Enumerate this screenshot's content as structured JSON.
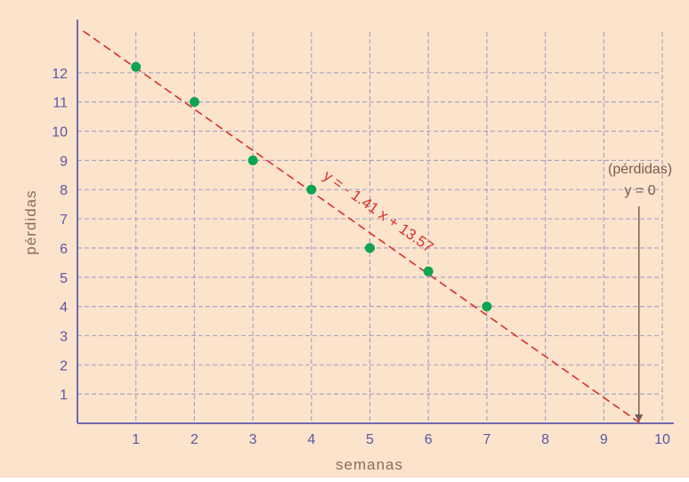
{
  "colors": {
    "background": "#FCE4CC",
    "axis": "#6E6AB0",
    "grid": "#A9A4C4",
    "tick_text": "#5B57A6",
    "axis_label": "#8A6A60",
    "points": "#0FA354",
    "fit_line": "#D9302B",
    "annotation": "#7A5A52"
  },
  "chart_data": {
    "type": "scatter",
    "title": "",
    "xlabel": "semanas",
    "ylabel": "pérdidas",
    "xlim": [
      0,
      10
    ],
    "ylim": [
      0,
      13
    ],
    "x_ticks": [
      "1",
      "2",
      "3",
      "4",
      "5",
      "6",
      "7",
      "8",
      "9",
      "10"
    ],
    "y_ticks": [
      "1",
      "2",
      "3",
      "4",
      "5",
      "6",
      "7",
      "8",
      "9",
      "10",
      "11",
      "12"
    ],
    "grid": true,
    "points": [
      {
        "x": 1,
        "y": 12.2
      },
      {
        "x": 2,
        "y": 11
      },
      {
        "x": 3,
        "y": 9
      },
      {
        "x": 4,
        "y": 8
      },
      {
        "x": 5,
        "y": 6
      },
      {
        "x": 6,
        "y": 5.2
      },
      {
        "x": 7,
        "y": 4
      }
    ],
    "fit_line": {
      "slope": -1.41,
      "intercept": 13.57,
      "label": "y = - 1.41 x + 13.57"
    },
    "annotation": {
      "line1": "(pérdidas)",
      "line2": "y = 0",
      "x_value": 9.6
    }
  }
}
